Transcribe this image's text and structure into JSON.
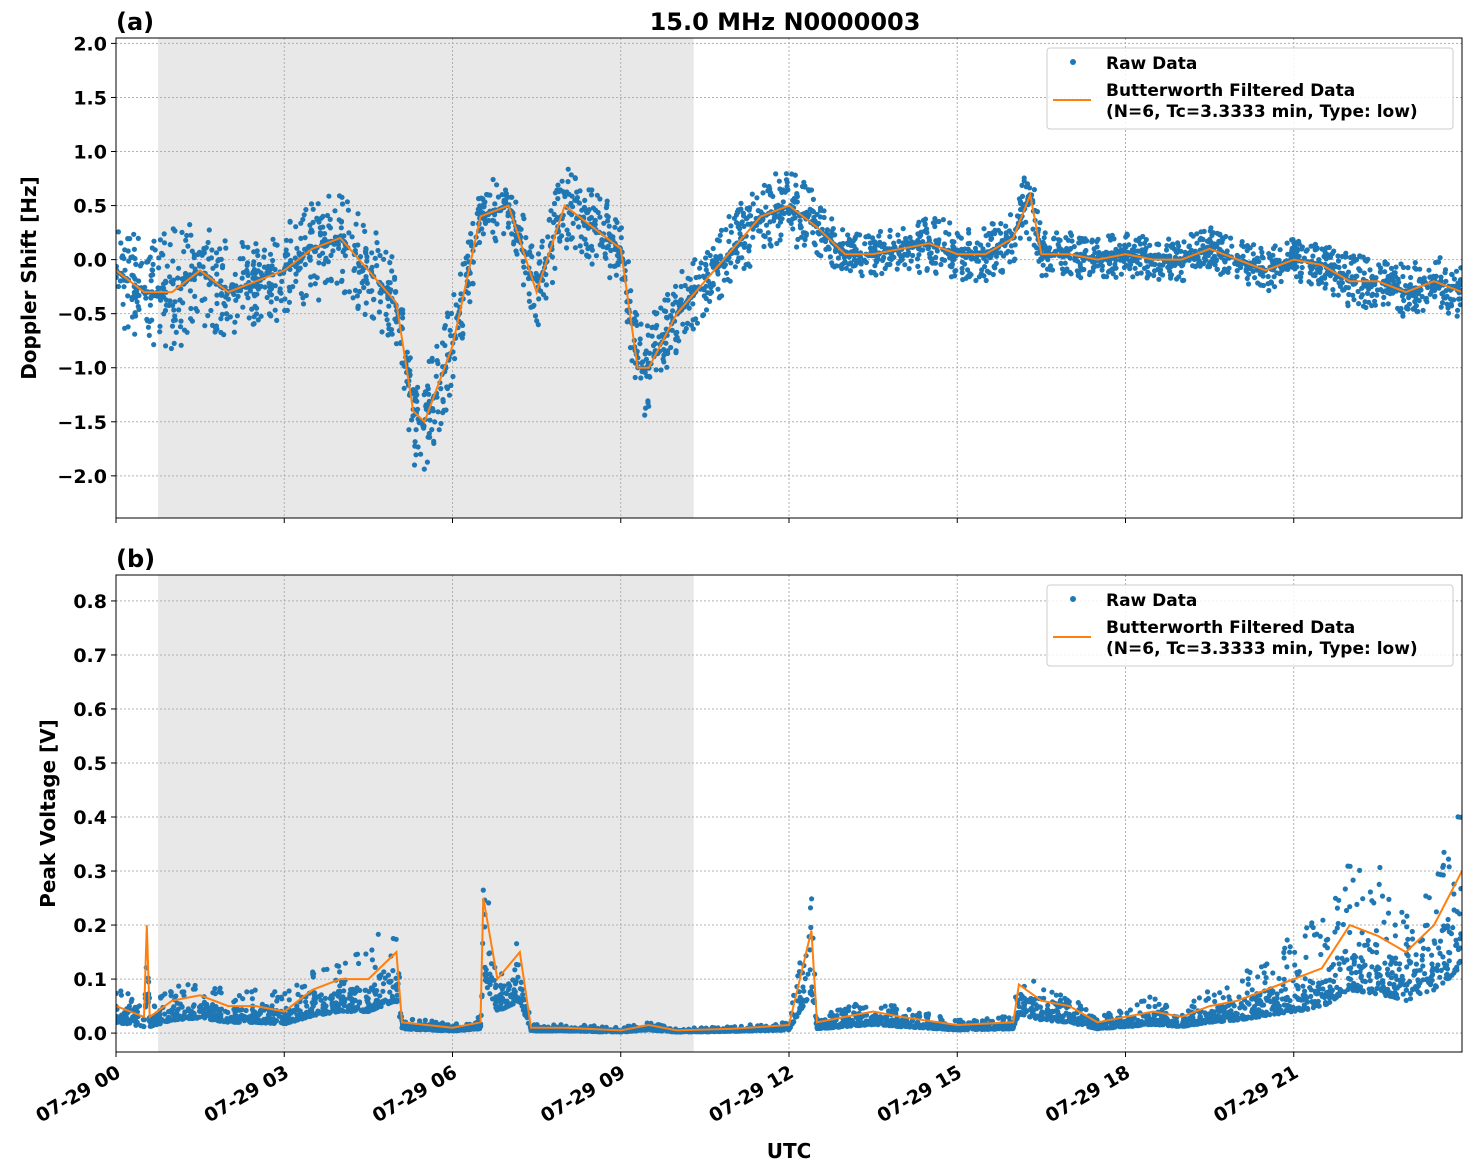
{
  "title": "15.0 MHz N0000003",
  "xlabel": "UTC",
  "x_ticks": [
    "07-29 00",
    "07-29 03",
    "07-29 06",
    "07-29 09",
    "07-29 12",
    "07-29 15",
    "07-29 18",
    "07-29 21"
  ],
  "x_tick_hours": [
    0,
    3,
    6,
    9,
    12,
    15,
    18,
    21
  ],
  "x_range_hours": [
    0,
    24
  ],
  "shaded_region_hours": [
    0.75,
    10.3
  ],
  "colors": {
    "raw": "#1f77b4",
    "filtered": "#ff7f0e",
    "shade": "#e8e8e8"
  },
  "legend": {
    "raw": "Raw Data",
    "filtered_line1": "Butterworth Filtered Data",
    "filtered_line2": "(N=6, Tc=3.3333 min, Type: low)",
    "placement": "top-right"
  },
  "chart_data": [
    {
      "type": "scatter+line",
      "panel_label": "(a)",
      "ylabel": "Doppler Shift [Hz]",
      "ylim": [
        -2.39,
        2.05
      ],
      "y_ticks": [
        "2.0",
        "1.5",
        "1.0",
        "0.5",
        "0.0",
        "−0.5",
        "−1.0",
        "−1.5",
        "−2.0"
      ],
      "y_tick_values": [
        2.0,
        1.5,
        1.0,
        0.5,
        0.0,
        -0.5,
        -1.0,
        -1.5,
        -2.0
      ],
      "x": [
        0,
        0.5,
        1,
        1.5,
        2,
        2.5,
        3,
        3.5,
        4,
        4.5,
        5,
        5.3,
        5.5,
        6,
        6.5,
        7,
        7.5,
        8,
        8.5,
        9,
        9.3,
        9.5,
        10,
        10.5,
        11,
        11.5,
        12,
        12.5,
        13,
        13.5,
        14,
        14.5,
        15,
        15.5,
        16,
        16.3,
        16.5,
        17,
        17.5,
        18,
        18.5,
        19,
        19.5,
        20,
        20.5,
        21,
        21.5,
        22,
        22.5,
        23,
        23.5,
        24
      ],
      "filtered": [
        -0.1,
        -0.3,
        -0.3,
        -0.1,
        -0.3,
        -0.2,
        -0.1,
        0.1,
        0.2,
        -0.1,
        -0.4,
        -1.4,
        -1.5,
        -0.8,
        0.4,
        0.5,
        -0.3,
        0.5,
        0.3,
        0.1,
        -1.0,
        -1.0,
        -0.5,
        -0.2,
        0.1,
        0.4,
        0.5,
        0.3,
        0.05,
        0.05,
        0.1,
        0.15,
        0.05,
        0.05,
        0.2,
        0.6,
        0.05,
        0.05,
        0.0,
        0.05,
        0.0,
        0.0,
        0.1,
        0.0,
        -0.1,
        0.0,
        -0.05,
        -0.2,
        -0.2,
        -0.3,
        -0.2,
        -0.3
      ],
      "raw_spread": [
        0.5,
        0.45,
        0.6,
        0.5,
        0.45,
        0.4,
        0.45,
        0.5,
        0.5,
        0.45,
        0.4,
        0.5,
        0.45,
        0.45,
        0.3,
        0.3,
        0.35,
        0.4,
        0.35,
        0.35,
        0.5,
        0.45,
        0.35,
        0.3,
        0.35,
        0.35,
        0.35,
        0.3,
        0.2,
        0.2,
        0.2,
        0.3,
        0.25,
        0.25,
        0.3,
        0.4,
        0.2,
        0.2,
        0.2,
        0.2,
        0.2,
        0.2,
        0.2,
        0.2,
        0.2,
        0.2,
        0.2,
        0.25,
        0.25,
        0.25,
        0.25,
        0.25
      ]
    },
    {
      "type": "scatter+line",
      "panel_label": "(b)",
      "ylabel": "Peak Voltage [V]",
      "ylim": [
        -0.035,
        0.848
      ],
      "y_ticks": [
        "0.8",
        "0.7",
        "0.6",
        "0.5",
        "0.4",
        "0.3",
        "0.2",
        "0.1",
        "0.0"
      ],
      "y_tick_values": [
        0.8,
        0.7,
        0.6,
        0.5,
        0.4,
        0.3,
        0.2,
        0.1,
        0.0
      ],
      "x": [
        0,
        0.5,
        0.55,
        0.6,
        1,
        1.5,
        2,
        2.5,
        3,
        3.5,
        4,
        4.5,
        5,
        5.1,
        6,
        6.5,
        6.55,
        6.8,
        7.2,
        7.4,
        8,
        9,
        9.5,
        10,
        11,
        12,
        12.4,
        12.5,
        13,
        13.5,
        14,
        15,
        16,
        16.1,
        16.5,
        17,
        17.5,
        18,
        18.5,
        19,
        19.5,
        20,
        20.5,
        21,
        21.5,
        22,
        22.5,
        23,
        23.5,
        24
      ],
      "filtered": [
        0.05,
        0.03,
        0.2,
        0.03,
        0.06,
        0.07,
        0.05,
        0.05,
        0.04,
        0.08,
        0.1,
        0.1,
        0.15,
        0.02,
        0.01,
        0.02,
        0.25,
        0.1,
        0.15,
        0.01,
        0.01,
        0.005,
        0.015,
        0.005,
        0.008,
        0.015,
        0.19,
        0.02,
        0.03,
        0.04,
        0.03,
        0.015,
        0.02,
        0.09,
        0.06,
        0.05,
        0.02,
        0.03,
        0.04,
        0.03,
        0.05,
        0.06,
        0.08,
        0.1,
        0.12,
        0.2,
        0.18,
        0.15,
        0.2,
        0.3
      ],
      "raw_spread": [
        0.06,
        0.04,
        0.15,
        0.04,
        0.05,
        0.06,
        0.05,
        0.05,
        0.05,
        0.07,
        0.08,
        0.1,
        0.15,
        0.02,
        0.01,
        0.02,
        0.25,
        0.08,
        0.1,
        0.01,
        0.01,
        0.008,
        0.012,
        0.005,
        0.008,
        0.012,
        0.15,
        0.02,
        0.03,
        0.04,
        0.03,
        0.015,
        0.02,
        0.08,
        0.05,
        0.04,
        0.02,
        0.03,
        0.05,
        0.03,
        0.05,
        0.07,
        0.1,
        0.12,
        0.14,
        0.2,
        0.2,
        0.15,
        0.2,
        0.25
      ]
    }
  ]
}
